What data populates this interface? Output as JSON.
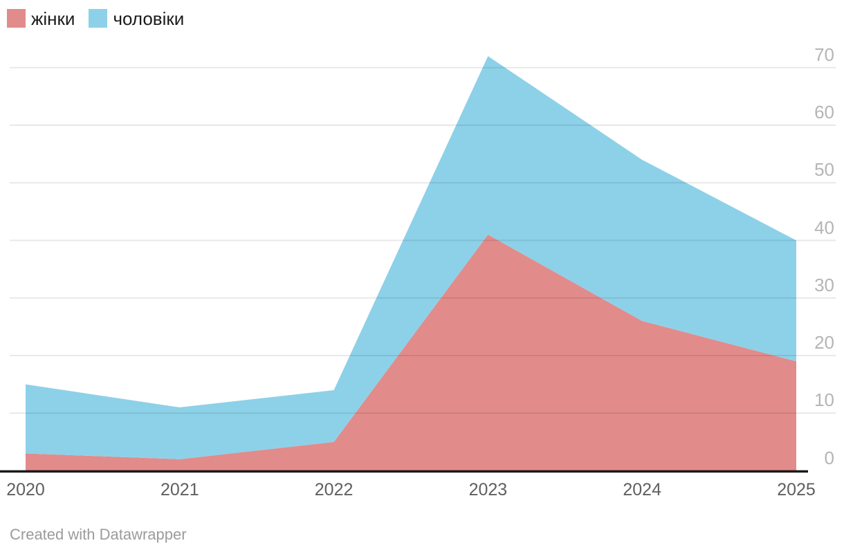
{
  "legend": {
    "items": [
      {
        "label": "жінки",
        "color": "#e28b8b"
      },
      {
        "label": "чоловіки",
        "color": "#8dd1e8"
      }
    ]
  },
  "chart_data": {
    "type": "area",
    "stacked": true,
    "title": "",
    "categories": [
      "2020",
      "2021",
      "2022",
      "2023",
      "2024",
      "2025"
    ],
    "series": [
      {
        "name": "жінки",
        "color": "#e28b8b",
        "values": [
          3,
          2,
          5,
          41,
          26,
          19
        ]
      },
      {
        "name": "чоловіки",
        "color": "#8dd1e8",
        "values": [
          12,
          9,
          9,
          31,
          28,
          21
        ]
      }
    ],
    "stacked_totals": [
      15,
      11,
      14,
      72,
      54,
      40
    ],
    "yticks": [
      0,
      10,
      20,
      30,
      40,
      50,
      60,
      70
    ],
    "ylim": [
      0,
      72
    ],
    "xlabel": "",
    "ylabel": "",
    "grid": "horizontal",
    "legend_position": "top-left",
    "y_axis_side": "right"
  },
  "colors": {
    "axis_line": "#1a1a1a",
    "gridline": "rgba(0,0,0,0.09)",
    "x_tick_text": "#5f5f5f",
    "y_tick_text": "#b5b5b5",
    "footer_text": "#9b9b9b"
  },
  "footer": {
    "credit": "Created with Datawrapper"
  }
}
